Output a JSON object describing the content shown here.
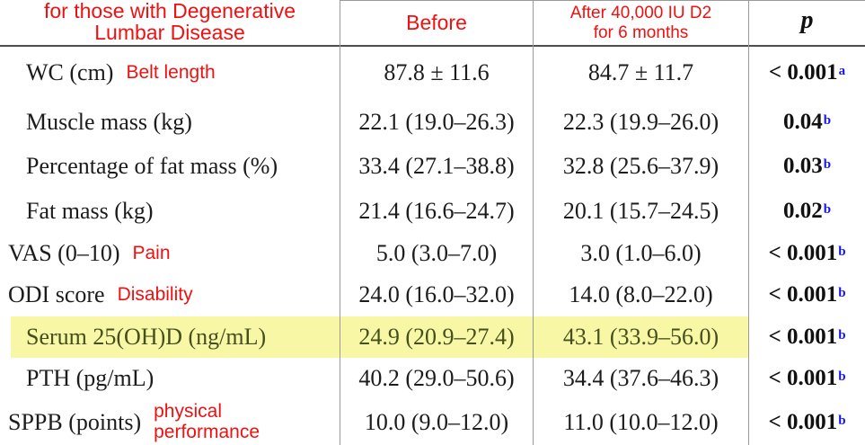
{
  "table": {
    "header": {
      "col1_line1": "for those with Degenerative",
      "col1_line2": "Lumbar Disease",
      "col2": "Before",
      "col3_line1": "After 40,000 IU D2",
      "col3_line2": "for 6 months",
      "col4": "p"
    },
    "rows": [
      {
        "label": "WC (cm)",
        "annotation": "Belt length",
        "before": "87.8 ± 11.6",
        "after": "84.7 ± 11.7",
        "p": "< 0.001",
        "p_sup": "a"
      },
      {
        "label": "Muscle mass (kg)",
        "annotation": "",
        "before": "22.1 (19.0–26.3)",
        "after": "22.3 (19.9–26.0)",
        "p": "0.04",
        "p_sup": "b"
      },
      {
        "label": "Percentage of fat mass (%)",
        "annotation": "",
        "before": "33.4 (27.1–38.8)",
        "after": "32.8 (25.6–37.9)",
        "p": "0.03",
        "p_sup": "b"
      },
      {
        "label": "Fat mass (kg)",
        "annotation": "",
        "before": "21.4 (16.6–24.7)",
        "after": "20.1 (15.7–24.5)",
        "p": "0.02",
        "p_sup": "b"
      },
      {
        "label": "VAS (0–10)",
        "annotation": "Pain",
        "before": "5.0 (3.0–7.0)",
        "after": "3.0 (1.0–6.0)",
        "p": "< 0.001",
        "p_sup": "b"
      },
      {
        "label": "ODI score",
        "annotation": "Disability",
        "before": "24.0 (16.0–32.0)",
        "after": "14.0 (8.0–22.0)",
        "p": "< 0.001",
        "p_sup": "b"
      },
      {
        "label": "Serum 25(OH)D (ng/mL)",
        "annotation": "",
        "before": "24.9 (20.9–27.4)",
        "after": "43.1 (33.9–56.0)",
        "p": "< 0.001",
        "p_sup": "b"
      },
      {
        "label": "PTH (pg/mL)",
        "annotation": "",
        "before": "40.2 (29.0–50.6)",
        "after": "34.4 (37.6–46.3)",
        "p": "< 0.001",
        "p_sup": "b"
      },
      {
        "label": "SPPB (points)",
        "annotation": "physical performance",
        "before": "10.0 (9.0–12.0)",
        "after": "11.0 (10.0–12.0)",
        "p": "< 0.001",
        "p_sup": "b"
      }
    ],
    "highlighted_row_label": "Serum 25(OH)D (ng/mL)"
  },
  "colors": {
    "annotation_red": "#ee1111",
    "superscript_blue": "#1414f0",
    "highlight_yellow": "#f7f7a6",
    "grid_line": "#9a9a9a",
    "header_rule": "#4d4d4d"
  }
}
